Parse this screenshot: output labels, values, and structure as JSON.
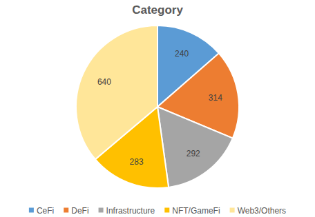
{
  "chart_data": {
    "type": "pie",
    "title": "Category",
    "categories": [
      "CeFi",
      "DeFi",
      "Infrastructure",
      "NFT/GameFi",
      "Web3/Others"
    ],
    "values": [
      240,
      314,
      292,
      283,
      640
    ],
    "colors": [
      "#5b9bd5",
      "#ed7d31",
      "#a5a5a5",
      "#ffc000",
      "#ffe699"
    ],
    "data_labels": true,
    "legend": "bottom"
  }
}
